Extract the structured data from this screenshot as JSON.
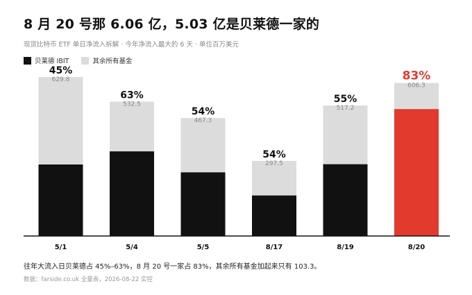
{
  "header": {
    "title": "8 月 20 号那 6.06 亿，5.03 亿是贝莱德一家的",
    "subtitle": "现货比特币 ETF 单日净流入拆解 · 今年净流入最大的 6 天 · 单位百万美元"
  },
  "legend": {
    "ibit_label": "贝莱德 IBIT",
    "others_label": "其余所有基金"
  },
  "colors": {
    "ibit": "#111111",
    "others": "#dcdcdc",
    "highlight": "#e23b2e",
    "axis": "#111111"
  },
  "chart_data": {
    "type": "bar",
    "stacked": true,
    "categories": [
      "5/1",
      "5/4",
      "5/5",
      "8/17",
      "8/19",
      "8/20"
    ],
    "series": [
      {
        "name": "贝莱德 IBIT",
        "values": [
          283.3,
          335.3,
          252.2,
          160.6,
          284.4,
          503.0
        ]
      },
      {
        "name": "其余所有基金",
        "values": [
          346.5,
          197.2,
          215.1,
          136.9,
          232.8,
          103.3
        ]
      }
    ],
    "totals": [
      "629.8",
      "532.5",
      "467.3",
      "297.5",
      "517.2",
      "606.3"
    ],
    "share_labels": [
      "45%",
      "63%",
      "54%",
      "54%",
      "55%",
      "83%"
    ],
    "highlight_index": 5,
    "ylim": [
      0,
      680
    ],
    "grid": false
  },
  "footer": {
    "note": "往年大流入日贝莱德占 45%–63%，8 月 20 号一家占 83%，其余所有基金加起来只有 103.3。",
    "source": "数据：farside.co.uk 全量表，2026-08-22 实控"
  }
}
